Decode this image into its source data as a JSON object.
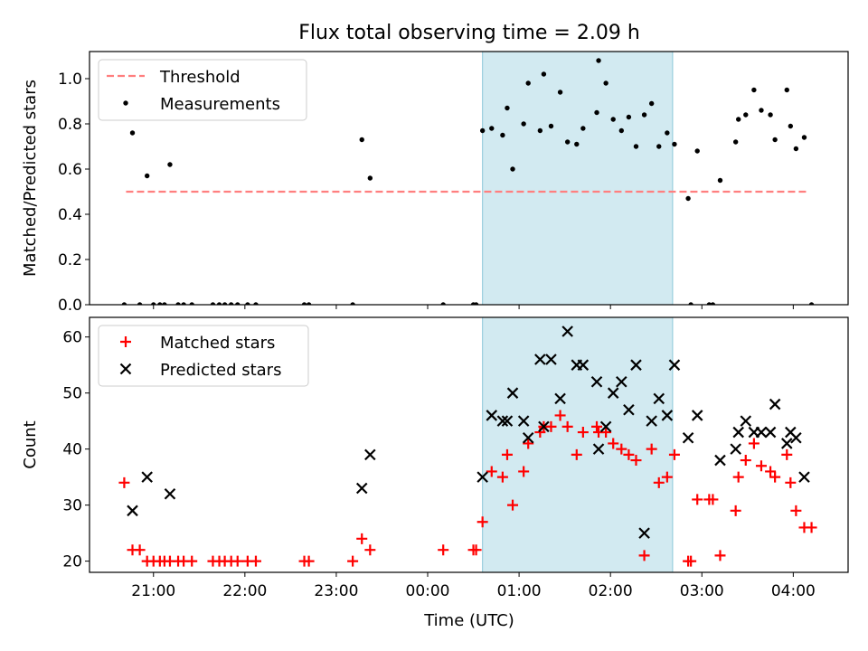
{
  "figure": {
    "title": "Flux total observing time = 2.09 h",
    "xlabel": "Time (UTC)"
  },
  "chart_data": [
    {
      "type": "scatter",
      "title": "Flux total observing time = 2.09 h",
      "ylabel": "Matched/Predicted stars",
      "xlabel": "",
      "x_unit": "hours since 20:00 UTC",
      "xlim": [
        20.3,
        28.6
      ],
      "ylim": [
        0,
        1.12
      ],
      "yticks": [
        0.0,
        0.2,
        0.4,
        0.6,
        0.8,
        1.0
      ],
      "ytick_labels": [
        "0.0",
        "0.2",
        "0.4",
        "0.6",
        "0.8",
        "1.0"
      ],
      "highlight_span": {
        "x": [
          24.6,
          26.68
        ],
        "color": "#add8e6"
      },
      "legend": {
        "position": "upper-left",
        "entries": [
          "Threshold",
          "Measurements"
        ]
      },
      "threshold": {
        "name": "Threshold",
        "x": [
          20.7,
          28.15
        ],
        "y": 0.5,
        "color": "#ff7f7f",
        "style": "dashed"
      },
      "series": [
        {
          "name": "Measurements",
          "color": "#000000",
          "marker": "dot",
          "points": [
            [
              20.68,
              0
            ],
            [
              20.77,
              0.76
            ],
            [
              20.85,
              0
            ],
            [
              20.93,
              0.57
            ],
            [
              21.0,
              0
            ],
            [
              21.07,
              0
            ],
            [
              21.12,
              0
            ],
            [
              21.18,
              0.62
            ],
            [
              21.27,
              0
            ],
            [
              21.33,
              0
            ],
            [
              21.42,
              0
            ],
            [
              21.65,
              0
            ],
            [
              21.72,
              0
            ],
            [
              21.78,
              0
            ],
            [
              21.85,
              0
            ],
            [
              21.92,
              0
            ],
            [
              22.03,
              0
            ],
            [
              22.12,
              0
            ],
            [
              22.65,
              0
            ],
            [
              22.7,
              0
            ],
            [
              23.18,
              0
            ],
            [
              23.28,
              0.73
            ],
            [
              23.37,
              0.56
            ],
            [
              24.17,
              0
            ],
            [
              24.5,
              0
            ],
            [
              24.53,
              0
            ],
            [
              24.6,
              0.77
            ],
            [
              24.7,
              0.78
            ],
            [
              24.82,
              0.75
            ],
            [
              24.87,
              0.87
            ],
            [
              24.93,
              0.6
            ],
            [
              25.05,
              0.8
            ],
            [
              25.1,
              0.98
            ],
            [
              25.23,
              0.77
            ],
            [
              25.27,
              1.02
            ],
            [
              25.35,
              0.79
            ],
            [
              25.45,
              0.94
            ],
            [
              25.53,
              0.72
            ],
            [
              25.63,
              0.71
            ],
            [
              25.7,
              0.78
            ],
            [
              25.85,
              0.85
            ],
            [
              25.87,
              1.08
            ],
            [
              25.95,
              0.98
            ],
            [
              26.03,
              0.82
            ],
            [
              26.12,
              0.77
            ],
            [
              26.2,
              0.83
            ],
            [
              26.28,
              0.7
            ],
            [
              26.37,
              0.84
            ],
            [
              26.45,
              0.89
            ],
            [
              26.53,
              0.7
            ],
            [
              26.62,
              0.76
            ],
            [
              26.7,
              0.71
            ],
            [
              26.85,
              0.47
            ],
            [
              26.88,
              0
            ],
            [
              26.95,
              0.68
            ],
            [
              27.08,
              0
            ],
            [
              27.12,
              0
            ],
            [
              27.2,
              0.55
            ],
            [
              27.37,
              0.72
            ],
            [
              27.4,
              0.82
            ],
            [
              27.48,
              0.84
            ],
            [
              27.57,
              0.95
            ],
            [
              27.65,
              0.86
            ],
            [
              27.75,
              0.84
            ],
            [
              27.8,
              0.73
            ],
            [
              27.93,
              0.95
            ],
            [
              27.97,
              0.79
            ],
            [
              28.03,
              0.69
            ],
            [
              28.12,
              0.74
            ],
            [
              28.2,
              0
            ]
          ]
        }
      ]
    },
    {
      "type": "scatter",
      "title": "",
      "ylabel": "Count",
      "xlabel": "Time (UTC)",
      "x_unit": "hours since 20:00 UTC",
      "xlim": [
        20.3,
        28.6
      ],
      "ylim": [
        18,
        63.5
      ],
      "yticks": [
        20,
        30,
        40,
        50,
        60
      ],
      "ytick_labels": [
        "20",
        "30",
        "40",
        "50",
        "60"
      ],
      "xticks": [
        21,
        22,
        23,
        24,
        25,
        26,
        27,
        28
      ],
      "xtick_labels": [
        "21:00",
        "22:00",
        "23:00",
        "00:00",
        "01:00",
        "02:00",
        "03:00",
        "04:00"
      ],
      "highlight_span": {
        "x": [
          24.6,
          26.68
        ],
        "color": "#add8e6"
      },
      "legend": {
        "position": "upper-left",
        "entries": [
          "Matched stars",
          "Predicted stars"
        ]
      },
      "series": [
        {
          "name": "Matched stars",
          "color": "#ff0000",
          "marker": "plus",
          "points": [
            [
              20.68,
              34
            ],
            [
              20.77,
              22
            ],
            [
              20.85,
              22
            ],
            [
              20.93,
              20
            ],
            [
              21.0,
              20
            ],
            [
              21.07,
              20
            ],
            [
              21.12,
              20
            ],
            [
              21.18,
              20
            ],
            [
              21.27,
              20
            ],
            [
              21.33,
              20
            ],
            [
              21.42,
              20
            ],
            [
              21.65,
              20
            ],
            [
              21.72,
              20
            ],
            [
              21.78,
              20
            ],
            [
              21.85,
              20
            ],
            [
              21.92,
              20
            ],
            [
              22.03,
              20
            ],
            [
              22.12,
              20
            ],
            [
              22.65,
              20
            ],
            [
              22.7,
              20
            ],
            [
              23.18,
              20
            ],
            [
              23.28,
              24
            ],
            [
              23.37,
              22
            ],
            [
              24.17,
              22
            ],
            [
              24.5,
              22
            ],
            [
              24.53,
              22
            ],
            [
              24.6,
              27
            ],
            [
              24.7,
              36
            ],
            [
              24.82,
              35
            ],
            [
              24.87,
              39
            ],
            [
              24.93,
              30
            ],
            [
              25.05,
              36
            ],
            [
              25.1,
              41
            ],
            [
              25.23,
              43
            ],
            [
              25.27,
              44
            ],
            [
              25.35,
              44
            ],
            [
              25.45,
              46
            ],
            [
              25.53,
              44
            ],
            [
              25.63,
              39
            ],
            [
              25.7,
              43
            ],
            [
              25.85,
              44
            ],
            [
              25.87,
              43
            ],
            [
              25.95,
              43
            ],
            [
              26.03,
              41
            ],
            [
              26.12,
              40
            ],
            [
              26.2,
              39
            ],
            [
              26.28,
              38
            ],
            [
              26.37,
              21
            ],
            [
              26.45,
              40
            ],
            [
              26.53,
              34
            ],
            [
              26.62,
              35
            ],
            [
              26.7,
              39
            ],
            [
              26.85,
              20
            ],
            [
              26.88,
              20
            ],
            [
              26.95,
              31
            ],
            [
              27.08,
              31
            ],
            [
              27.12,
              31
            ],
            [
              27.2,
              21
            ],
            [
              27.37,
              29
            ],
            [
              27.4,
              35
            ],
            [
              27.48,
              38
            ],
            [
              27.57,
              41
            ],
            [
              27.65,
              37
            ],
            [
              27.75,
              36
            ],
            [
              27.8,
              35
            ],
            [
              27.93,
              39
            ],
            [
              27.97,
              34
            ],
            [
              28.03,
              29
            ],
            [
              28.12,
              26
            ],
            [
              28.2,
              26
            ]
          ]
        },
        {
          "name": "Predicted stars",
          "color": "#000000",
          "marker": "x",
          "points": [
            [
              20.77,
              29
            ],
            [
              20.93,
              35
            ],
            [
              21.18,
              32
            ],
            [
              23.28,
              33
            ],
            [
              23.37,
              39
            ],
            [
              24.6,
              35
            ],
            [
              24.7,
              46
            ],
            [
              24.82,
              45
            ],
            [
              24.87,
              45
            ],
            [
              24.93,
              50
            ],
            [
              25.05,
              45
            ],
            [
              25.1,
              42
            ],
            [
              25.23,
              56
            ],
            [
              25.27,
              44
            ],
            [
              25.35,
              56
            ],
            [
              25.45,
              49
            ],
            [
              25.53,
              61
            ],
            [
              25.63,
              55
            ],
            [
              25.7,
              55
            ],
            [
              25.85,
              52
            ],
            [
              25.87,
              40
            ],
            [
              25.95,
              44
            ],
            [
              26.03,
              50
            ],
            [
              26.12,
              52
            ],
            [
              26.2,
              47
            ],
            [
              26.28,
              55
            ],
            [
              26.37,
              25
            ],
            [
              26.45,
              45
            ],
            [
              26.53,
              49
            ],
            [
              26.62,
              46
            ],
            [
              26.7,
              55
            ],
            [
              26.85,
              42
            ],
            [
              26.95,
              46
            ],
            [
              27.2,
              38
            ],
            [
              27.37,
              40
            ],
            [
              27.4,
              43
            ],
            [
              27.48,
              45
            ],
            [
              27.57,
              43
            ],
            [
              27.65,
              43
            ],
            [
              27.75,
              43
            ],
            [
              27.8,
              48
            ],
            [
              27.93,
              41
            ],
            [
              27.97,
              43
            ],
            [
              28.03,
              42
            ],
            [
              28.12,
              35
            ]
          ]
        }
      ]
    }
  ]
}
